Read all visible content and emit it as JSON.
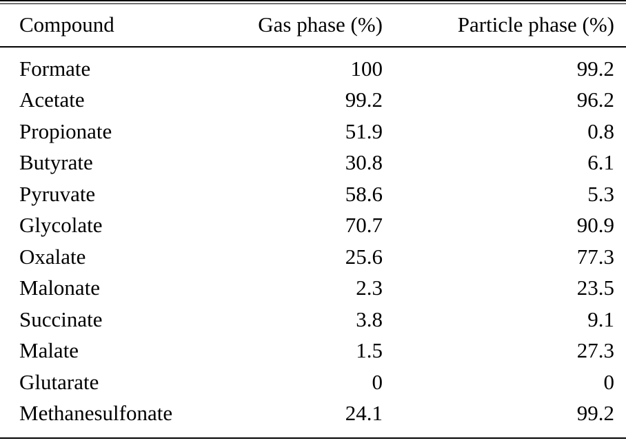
{
  "table": {
    "columns": [
      "Compound",
      "Gas phase (%)",
      "Particle phase (%)"
    ],
    "rows": [
      {
        "compound": "Formate",
        "gas": "100",
        "particle": "99.2"
      },
      {
        "compound": "Acetate",
        "gas": "99.2",
        "particle": "96.2"
      },
      {
        "compound": "Propionate",
        "gas": "51.9",
        "particle": "0.8"
      },
      {
        "compound": "Butyrate",
        "gas": "30.8",
        "particle": "6.1"
      },
      {
        "compound": "Pyruvate",
        "gas": "58.6",
        "particle": "5.3"
      },
      {
        "compound": "Glycolate",
        "gas": "70.7",
        "particle": "90.9"
      },
      {
        "compound": "Oxalate",
        "gas": "25.6",
        "particle": "77.3"
      },
      {
        "compound": "Malonate",
        "gas": "2.3",
        "particle": "23.5"
      },
      {
        "compound": "Succinate",
        "gas": "3.8",
        "particle": "9.1"
      },
      {
        "compound": "Malate",
        "gas": "1.5",
        "particle": "27.3"
      },
      {
        "compound": "Glutarate",
        "gas": "0",
        "particle": "0"
      },
      {
        "compound": "Methanesulfonate",
        "gas": "24.1",
        "particle": "99.2"
      }
    ],
    "colors": {
      "text": "#000000",
      "rule": "#000000",
      "background": "#ffffff"
    }
  }
}
